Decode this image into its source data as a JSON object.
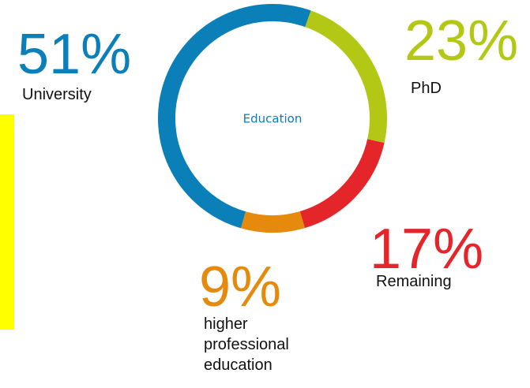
{
  "chart_data": {
    "type": "pie",
    "title": "Education",
    "categories": [
      "University",
      "PhD",
      "Remaining",
      "higher professional education"
    ],
    "values": [
      51,
      23,
      17,
      9
    ],
    "value_labels": [
      "51%",
      "23%",
      "17%",
      "9%"
    ],
    "colors": [
      "#0a7fb8",
      "#b2c814",
      "#e4262b",
      "#e58a0c"
    ]
  }
}
